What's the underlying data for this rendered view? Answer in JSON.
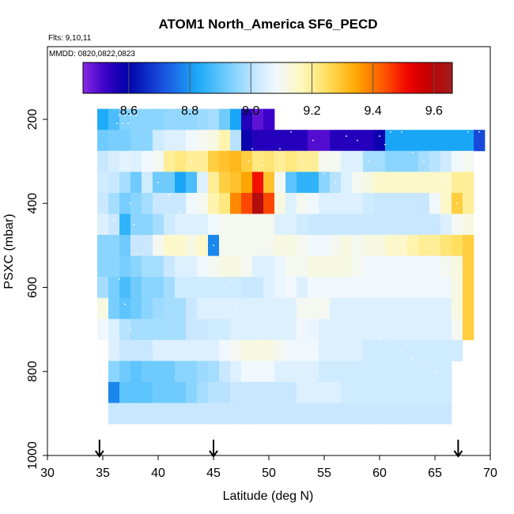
{
  "chart_data": {
    "type": "heatmap",
    "title": "ATOM1 North_America SF6_PECD",
    "note_flights": "Flts: 9,10,11",
    "note_dates": "MMDD: 0820,0822,0823",
    "xlabel": "Latitude (deg N)",
    "ylabel": "PSXC (mbar)",
    "xlim": [
      30,
      70
    ],
    "ylim": [
      1000,
      0
    ],
    "x_ticks": [
      "30",
      "35",
      "40",
      "45",
      "50",
      "55",
      "60",
      "65",
      "70"
    ],
    "y_ticks": [
      "200",
      "400",
      "600",
      "800",
      "1000"
    ],
    "colorbar": {
      "min": 8.45,
      "max": 9.66,
      "ticks": [
        "8.6",
        "8.8",
        "9.0",
        "9.2",
        "9.4",
        "9.6"
      ]
    },
    "arrows_latitude": [
      34.7,
      45.0,
      67.1
    ],
    "lat_start": 35,
    "lat_step": 1,
    "p_levels": [
      200,
      250,
      300,
      350,
      400,
      450,
      500,
      550,
      600,
      650,
      700,
      750,
      800,
      850,
      900,
      950
    ],
    "values": [
      [
        8.83,
        8.88,
        8.94,
        8.95,
        8.95,
        8.95,
        8.96,
        8.96,
        8.96,
        8.97,
        8.98,
        8.92,
        8.82,
        8.55,
        8.49,
        8.52,
        null,
        null,
        null,
        null,
        null,
        null,
        null,
        null,
        null,
        null,
        null,
        null,
        null,
        null,
        null,
        null,
        null,
        null,
        null
      ],
      [
        8.92,
        8.93,
        8.93,
        8.95,
        8.95,
        9.03,
        9.05,
        9.05,
        9.08,
        9.1,
        9.12,
        9.18,
        9.0,
        8.58,
        8.55,
        8.55,
        8.55,
        8.55,
        8.55,
        8.5,
        8.5,
        8.55,
        8.55,
        8.55,
        8.55,
        8.58,
        8.82,
        8.82,
        8.82,
        8.82,
        8.82,
        8.82,
        8.82,
        8.82,
        8.7
      ],
      [
        9.02,
        9.04,
        9.06,
        9.05,
        9.08,
        9.1,
        9.2,
        9.22,
        9.2,
        9.2,
        9.28,
        9.3,
        9.32,
        9.28,
        9.22,
        9.23,
        9.2,
        9.22,
        9.2,
        9.2,
        9.1,
        9.1,
        9.05,
        9.05,
        8.98,
        8.98,
        8.95,
        8.95,
        8.95,
        8.98,
        9.0,
        9.03,
        9.08,
        9.1,
        null
      ],
      [
        9.03,
        9.02,
        8.98,
        8.92,
        9.03,
        8.92,
        8.92,
        8.82,
        8.88,
        9.05,
        9.2,
        9.28,
        9.3,
        9.35,
        9.5,
        9.3,
        9.1,
        8.9,
        8.85,
        8.85,
        8.95,
        9.0,
        9.05,
        9.1,
        9.12,
        9.15,
        9.15,
        9.15,
        9.15,
        9.15,
        9.15,
        9.15,
        9.2,
        9.2,
        null
      ],
      [
        9.02,
        8.98,
        8.93,
        8.95,
        8.98,
        9.02,
        9.02,
        9.02,
        9.08,
        9.1,
        9.18,
        9.22,
        9.38,
        9.45,
        9.62,
        9.45,
        9.12,
        9.05,
        9.1,
        9.08,
        9.05,
        9.05,
        9.05,
        9.05,
        9.03,
        9.02,
        9.02,
        9.02,
        9.02,
        9.02,
        9.08,
        9.15,
        9.28,
        9.2,
        null
      ],
      [
        9.05,
        9.02,
        8.85,
        8.95,
        8.95,
        8.98,
        9.03,
        9.05,
        9.05,
        9.05,
        9.08,
        9.1,
        9.1,
        9.1,
        9.1,
        9.1,
        9.05,
        9.05,
        9.03,
        9.02,
        9.02,
        9.02,
        9.02,
        9.02,
        9.02,
        9.02,
        9.02,
        9.02,
        9.02,
        9.02,
        9.02,
        9.05,
        9.1,
        9.12,
        null
      ],
      [
        8.95,
        8.95,
        8.92,
        9.02,
        9.02,
        9.1,
        9.15,
        9.15,
        9.12,
        9.15,
        8.78,
        9.1,
        9.1,
        9.1,
        9.1,
        9.1,
        9.12,
        9.12,
        9.1,
        9.08,
        9.08,
        9.1,
        9.12,
        9.1,
        9.12,
        9.12,
        9.15,
        9.15,
        9.18,
        9.2,
        9.2,
        9.23,
        9.25,
        9.28,
        null
      ],
      [
        8.95,
        8.95,
        8.93,
        8.95,
        8.98,
        8.98,
        9.02,
        9.05,
        9.05,
        9.08,
        9.1,
        9.12,
        9.12,
        9.1,
        9.05,
        9.05,
        9.07,
        9.1,
        9.1,
        9.12,
        9.12,
        9.12,
        9.12,
        9.1,
        9.08,
        9.08,
        9.08,
        9.08,
        9.08,
        9.08,
        9.08,
        9.1,
        9.12,
        9.28,
        null
      ],
      [
        8.98,
        8.93,
        8.88,
        8.92,
        8.95,
        8.95,
        8.98,
        9.03,
        9.03,
        9.03,
        9.03,
        9.03,
        9.03,
        9.02,
        9.02,
        9.05,
        9.07,
        9.08,
        9.05,
        9.08,
        9.08,
        9.08,
        9.08,
        9.08,
        9.08,
        9.08,
        9.08,
        9.08,
        9.08,
        9.08,
        9.08,
        9.08,
        9.12,
        9.28,
        null
      ],
      [
        9.12,
        8.93,
        8.9,
        8.92,
        8.95,
        8.97,
        8.98,
        8.98,
        9.02,
        9.05,
        9.05,
        9.05,
        9.05,
        9.05,
        9.05,
        9.05,
        9.05,
        9.05,
        9.1,
        9.1,
        9.1,
        9.05,
        9.05,
        9.05,
        9.05,
        9.05,
        9.05,
        9.05,
        9.05,
        9.05,
        9.05,
        9.05,
        9.12,
        9.28,
        null
      ],
      [
        9.08,
        9.05,
        9.0,
        8.98,
        8.98,
        8.98,
        8.98,
        8.98,
        9.02,
        9.02,
        9.03,
        9.03,
        9.05,
        9.05,
        9.05,
        9.05,
        9.05,
        9.05,
        9.08,
        9.07,
        9.05,
        9.05,
        9.05,
        9.05,
        9.05,
        9.05,
        9.05,
        9.05,
        9.05,
        9.05,
        9.05,
        9.05,
        9.1,
        9.28,
        null
      ],
      [
        null,
        9.05,
        9.02,
        9.02,
        9.02,
        9.05,
        9.05,
        9.05,
        9.05,
        9.05,
        9.05,
        9.08,
        9.1,
        9.12,
        9.12,
        9.12,
        9.1,
        9.08,
        9.08,
        9.08,
        9.05,
        9.05,
        9.05,
        9.05,
        9.03,
        9.03,
        9.03,
        9.03,
        9.03,
        9.03,
        9.03,
        9.03,
        9.03,
        null,
        null
      ],
      [
        null,
        8.95,
        8.92,
        8.9,
        8.92,
        8.92,
        8.92,
        8.95,
        8.95,
        8.97,
        8.98,
        9.02,
        9.05,
        9.08,
        9.08,
        9.08,
        9.05,
        9.05,
        9.05,
        9.05,
        9.03,
        9.03,
        9.03,
        9.03,
        9.03,
        9.03,
        9.03,
        9.03,
        9.03,
        9.03,
        9.03,
        9.03,
        null,
        null,
        null
      ],
      [
        null,
        8.78,
        8.9,
        8.9,
        8.9,
        8.92,
        8.92,
        8.92,
        8.95,
        8.98,
        9.0,
        9.0,
        9.02,
        9.02,
        9.02,
        9.02,
        9.02,
        9.02,
        9.05,
        9.05,
        9.05,
        9.05,
        9.03,
        9.03,
        9.03,
        9.03,
        9.03,
        9.03,
        9.03,
        9.03,
        9.03,
        9.03,
        null,
        null,
        null
      ],
      [
        null,
        9.02,
        9.02,
        9.02,
        9.02,
        9.02,
        9.02,
        9.02,
        9.02,
        9.02,
        9.02,
        9.02,
        9.02,
        9.02,
        9.02,
        9.02,
        9.02,
        9.02,
        9.02,
        9.02,
        9.02,
        9.02,
        9.02,
        9.02,
        9.02,
        9.02,
        9.02,
        9.02,
        9.02,
        9.02,
        9.02,
        9.02,
        null,
        null,
        null
      ],
      [
        null,
        null,
        null,
        null,
        null,
        null,
        null,
        null,
        null,
        null,
        null,
        null,
        null,
        null,
        null,
        null,
        null,
        null,
        null,
        null,
        null,
        null,
        null,
        null,
        null,
        null,
        null,
        null,
        null,
        null,
        null,
        null,
        null,
        null,
        null
      ]
    ]
  }
}
